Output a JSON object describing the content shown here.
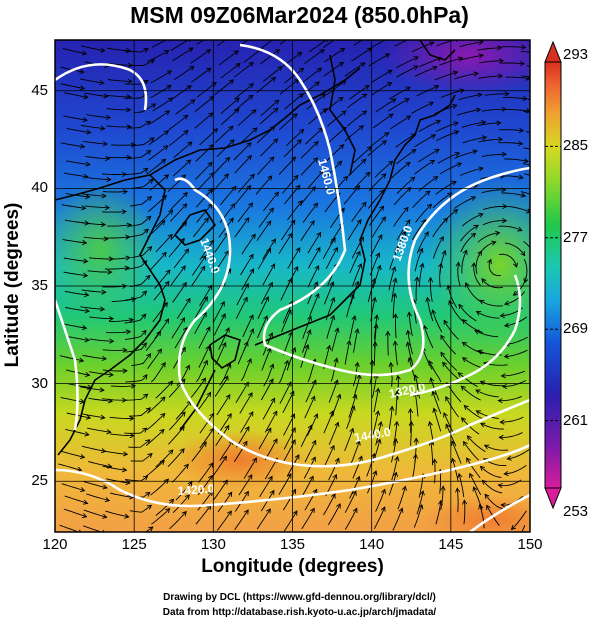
{
  "title": "MSM 09Z06Mar2024 (850.0hPa)",
  "x_axis": {
    "label": "Longitude (degrees)",
    "ticks": [
      "120",
      "125",
      "130",
      "135",
      "140",
      "145",
      "150"
    ]
  },
  "y_axis": {
    "label": "Latitude  (degrees)",
    "ticks": [
      "25",
      "30",
      "35",
      "40",
      "45"
    ]
  },
  "colorbar": {
    "ticks": [
      "293",
      "285",
      "277",
      "269",
      "261",
      "253"
    ],
    "min": 253,
    "max": 293,
    "colors": [
      "#d81c9c",
      "#7a1aa8",
      "#2a1fb0",
      "#1455d8",
      "#1aa6e0",
      "#19c8b0",
      "#22c84a",
      "#8ed82a",
      "#d6d820",
      "#f0a030",
      "#ee6030",
      "#d83020"
    ]
  },
  "contour_labels": [
    "1460.0",
    "1440.0",
    "1380.0",
    "1320.0",
    "1440.0",
    "1420.0"
  ],
  "credits": {
    "line1": "Drawing by DCL (https://www.gfd-dennou.org/library/dcl/)",
    "line2": "Data from http://database.rish.kyoto-u.ac.jp/arch/jmadata/"
  },
  "chart_data": {
    "type": "heatmap",
    "title": "MSM 09Z06Mar2024 (850.0hPa)",
    "xlabel": "Longitude (degrees)",
    "ylabel": "Latitude  (degrees)",
    "xlim": [
      120,
      150
    ],
    "ylim": [
      22.4,
      47.6
    ],
    "x_ticks": [
      120,
      125,
      130,
      135,
      140,
      145,
      150
    ],
    "y_ticks": [
      25,
      30,
      35,
      40,
      45
    ],
    "colorbar_range": [
      253,
      293
    ],
    "grid": true,
    "overlays": [
      "streamlines",
      "geopotential height contours (white)",
      "coastlines"
    ]
  }
}
